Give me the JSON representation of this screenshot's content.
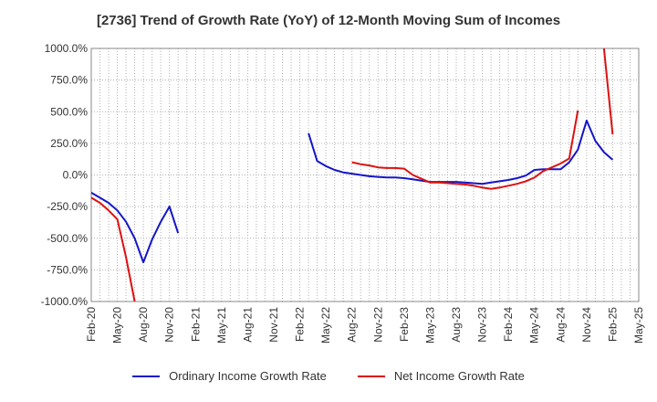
{
  "chart_data": {
    "type": "line",
    "title": "[2736]  Trend of Growth Rate (YoY) of 12-Month Moving Sum of Incomes",
    "xlabel": "",
    "ylabel": "",
    "ylim": [
      -1000,
      1000
    ],
    "yticks": [
      "1000.0%",
      "750.0%",
      "500.0%",
      "250.0%",
      "0.0%",
      "-250.0%",
      "-500.0%",
      "-750.0%",
      "-1000.0%"
    ],
    "xticks": [
      "Feb-20",
      "May-20",
      "Aug-20",
      "Nov-20",
      "Feb-21",
      "May-21",
      "Aug-21",
      "Nov-21",
      "Feb-22",
      "May-22",
      "Aug-22",
      "Nov-22",
      "Feb-23",
      "May-23",
      "Aug-23",
      "Nov-23",
      "Feb-24",
      "May-24",
      "Aug-24",
      "Nov-24",
      "Feb-25",
      "May-25"
    ],
    "x": [
      "Feb-20",
      "Mar-20",
      "Apr-20",
      "May-20",
      "Jun-20",
      "Jul-20",
      "Aug-20",
      "Sep-20",
      "Oct-20",
      "Nov-20",
      "Dec-20",
      "Jan-21",
      "Feb-21",
      "Mar-21",
      "Apr-21",
      "May-21",
      "Jun-21",
      "Jul-21",
      "Aug-21",
      "Sep-21",
      "Oct-21",
      "Nov-21",
      "Dec-21",
      "Jan-22",
      "Feb-22",
      "Mar-22",
      "Apr-22",
      "May-22",
      "Jun-22",
      "Jul-22",
      "Aug-22",
      "Sep-22",
      "Oct-22",
      "Nov-22",
      "Dec-22",
      "Jan-23",
      "Feb-23",
      "Mar-23",
      "Apr-23",
      "May-23",
      "Jun-23",
      "Jul-23",
      "Aug-23",
      "Sep-23",
      "Oct-23",
      "Nov-23",
      "Dec-23",
      "Jan-24",
      "Feb-24",
      "Mar-24",
      "Apr-24",
      "May-24",
      "Jun-24",
      "Jul-24",
      "Aug-24",
      "Sep-24",
      "Oct-24",
      "Nov-24",
      "Dec-24",
      "Jan-25",
      "Feb-25",
      "Mar-25",
      "Apr-25",
      "May-25"
    ],
    "grid": true,
    "legend_position": "bottom",
    "series": [
      {
        "name": "Ordinary Income Growth Rate",
        "color": "#1515c8",
        "values": [
          -140,
          -180,
          -220,
          -280,
          -370,
          -500,
          -690,
          -510,
          -370,
          -250,
          -460,
          null,
          null,
          null,
          null,
          null,
          null,
          null,
          null,
          null,
          null,
          null,
          null,
          null,
          null,
          330,
          110,
          70,
          40,
          20,
          10,
          0,
          -10,
          -15,
          -20,
          -20,
          -25,
          -35,
          -45,
          -55,
          -55,
          -55,
          -55,
          -60,
          -65,
          -70,
          -60,
          -50,
          -40,
          -25,
          -5,
          40,
          45,
          45,
          45,
          100,
          200,
          430,
          270,
          180,
          120,
          null,
          null,
          null
        ]
      },
      {
        "name": "Net Income Growth Rate",
        "color": "#dd1111",
        "values": [
          -180,
          -220,
          -280,
          -350,
          -650,
          -1000,
          null,
          null,
          null,
          null,
          null,
          null,
          null,
          null,
          null,
          null,
          null,
          null,
          null,
          null,
          null,
          null,
          null,
          null,
          null,
          null,
          null,
          null,
          null,
          null,
          100,
          85,
          75,
          60,
          55,
          55,
          50,
          0,
          -30,
          -60,
          -60,
          -65,
          -70,
          -75,
          -85,
          -100,
          -110,
          -100,
          -85,
          -70,
          -50,
          -20,
          30,
          60,
          90,
          130,
          510,
          null,
          null,
          1000,
          320,
          null,
          null,
          null
        ]
      }
    ]
  }
}
